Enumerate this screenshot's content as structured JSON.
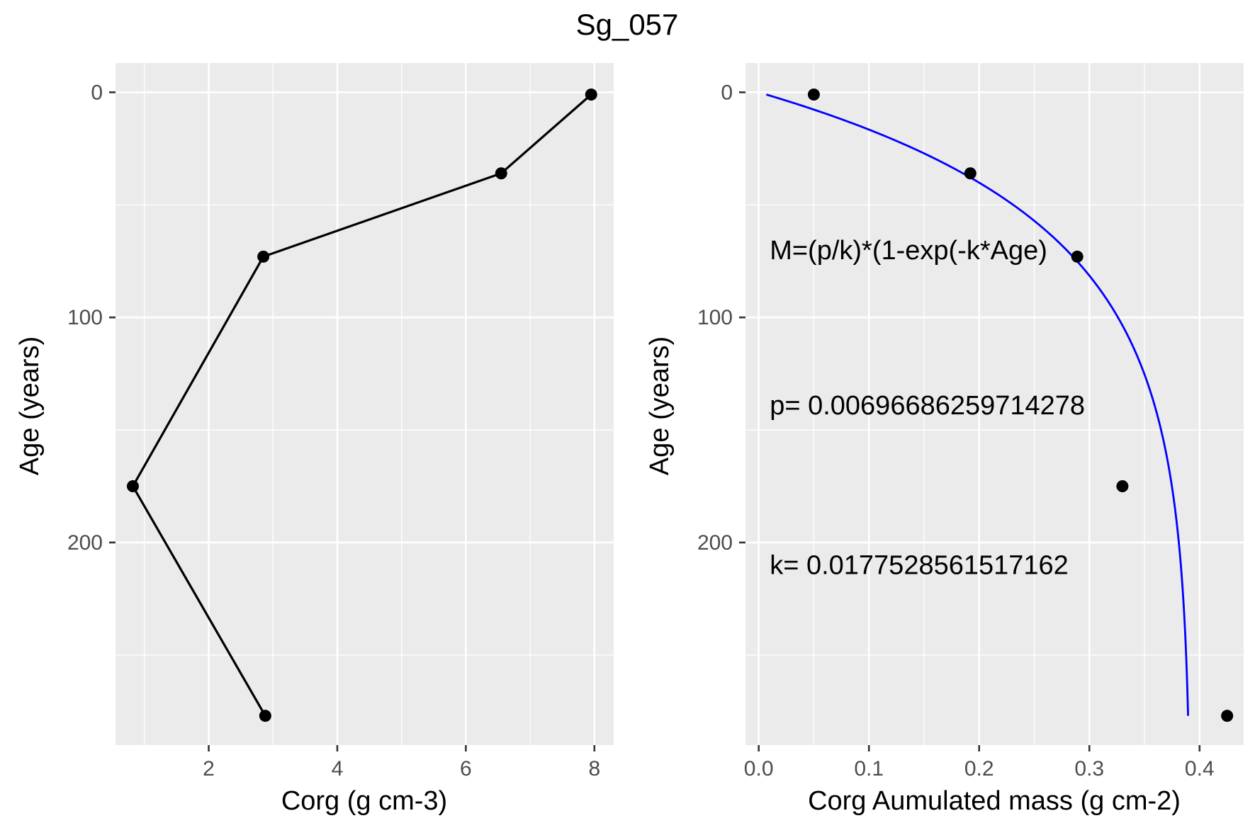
{
  "title": "Sg_057",
  "chart_data": [
    {
      "type": "line",
      "xlabel": "Corg (g cm-3)",
      "ylabel": "Age (years)",
      "xlim": [
        0.55,
        8.3
      ],
      "ylim": [
        -13,
        290
      ],
      "y_reversed": true,
      "x_ticks": [
        2,
        4,
        6,
        8
      ],
      "y_ticks": [
        0,
        100,
        200
      ],
      "grid": true,
      "points": [
        {
          "x": 7.95,
          "y": 1
        },
        {
          "x": 6.55,
          "y": 36
        },
        {
          "x": 2.85,
          "y": 73
        },
        {
          "x": 0.82,
          "y": 175
        },
        {
          "x": 2.88,
          "y": 277
        }
      ]
    },
    {
      "type": "scatter",
      "xlabel": "Corg Aumulated mass (g cm-2)",
      "ylabel": "Age (years)",
      "xlim": [
        -0.012,
        0.44
      ],
      "ylim": [
        -13,
        290
      ],
      "y_reversed": true,
      "x_ticks": [
        0.0,
        0.1,
        0.2,
        0.3,
        0.4
      ],
      "x_tick_labels": [
        "0.0",
        "0.1",
        "0.2",
        "0.3",
        "0.4"
      ],
      "y_ticks": [
        0,
        100,
        200
      ],
      "grid": true,
      "points": [
        {
          "x": 0.05,
          "y": 1
        },
        {
          "x": 0.192,
          "y": 36
        },
        {
          "x": 0.289,
          "y": 73
        },
        {
          "x": 0.33,
          "y": 175
        },
        {
          "x": 0.425,
          "y": 277
        }
      ],
      "fit": {
        "color": "#0000FF",
        "p": 0.00696686259714278,
        "k": 0.0177528561517162,
        "age_range": [
          1,
          277
        ]
      },
      "annotations": [
        {
          "text": "M=(p/k)*(1-exp(-k*Age)",
          "x": 0.01,
          "y": 70
        },
        {
          "text": "p= 0.00696686259714278",
          "x": 0.01,
          "y": 139
        },
        {
          "text": "k= 0.0177528561517162",
          "x": 0.01,
          "y": 210
        }
      ]
    }
  ]
}
